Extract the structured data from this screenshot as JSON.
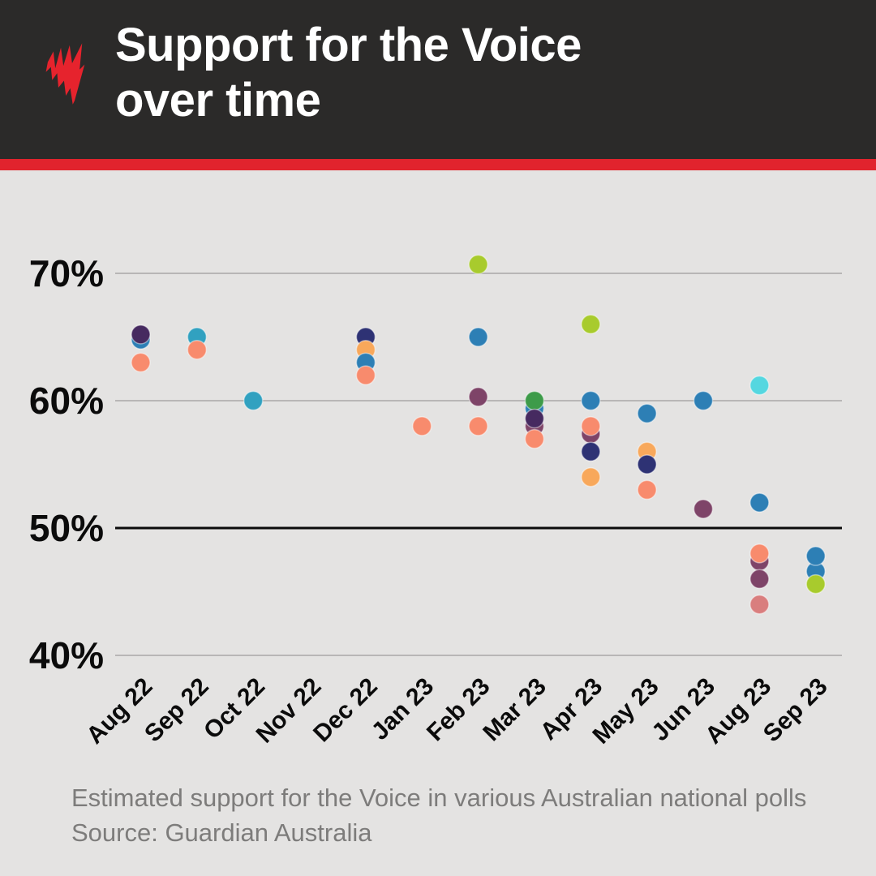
{
  "header": {
    "title_line1": "Support for the Voice",
    "title_line2": "over time"
  },
  "footer": {
    "caption_line1": "Estimated support for the Voice in various Australian national polls",
    "caption_line2": "Source: Guardian Australia"
  },
  "colors": {
    "header_bg": "#2b2a29",
    "accent_red": "#e1232d",
    "page_bg": "#e4e3e2",
    "grid": "#a9a8a7",
    "grid_emphasis": "#0b0b0b",
    "tick_text": "#0b0b0b",
    "caption_text": "#7d7c7b",
    "logo_red": "#e6232d"
  },
  "chart_data": {
    "type": "scatter",
    "title": "Support for the Voice over time",
    "xlabel": "",
    "ylabel": "",
    "grid": "horizontal",
    "legend": "none",
    "ylim": [
      38,
      73
    ],
    "categories": [
      "Aug 22",
      "Sep 22",
      "Oct 22",
      "Nov 22",
      "Dec 22",
      "Jan 23",
      "Feb 23",
      "Mar 23",
      "Apr 23",
      "May 23",
      "Jun 23",
      "Aug 23",
      "Sep 23"
    ],
    "yticks": [
      {
        "label": "70%",
        "value": 70,
        "emphasis": false
      },
      {
        "label": "60%",
        "value": 60,
        "emphasis": false
      },
      {
        "label": "50%",
        "value": 50,
        "emphasis": true
      },
      {
        "label": "40%",
        "value": 40,
        "emphasis": false
      }
    ],
    "palette": {
      "blue": "#2d7fb5",
      "teal": "#31a1c0",
      "cyan": "#55d7e0",
      "navy": "#2e3274",
      "darkpurple": "#462a60",
      "plum": "#7e4468",
      "salmon": "#f88b6d",
      "amber": "#f8a85b",
      "lime": "#a8cb2d",
      "green": "#3d9b49",
      "rose": "#d97e7e"
    },
    "points": [
      {
        "x": "Aug 22",
        "y": 64.8,
        "c": "blue"
      },
      {
        "x": "Aug 22",
        "y": 65.2,
        "c": "darkpurple"
      },
      {
        "x": "Aug 22",
        "y": 63,
        "c": "salmon"
      },
      {
        "x": "Sep 22",
        "y": 65,
        "c": "teal"
      },
      {
        "x": "Sep 22",
        "y": 64,
        "c": "salmon"
      },
      {
        "x": "Oct 22",
        "y": 60,
        "c": "teal"
      },
      {
        "x": "Dec 22",
        "y": 65,
        "c": "navy"
      },
      {
        "x": "Dec 22",
        "y": 64,
        "c": "amber"
      },
      {
        "x": "Dec 22",
        "y": 63,
        "c": "blue"
      },
      {
        "x": "Dec 22",
        "y": 62,
        "c": "salmon"
      },
      {
        "x": "Jan 23",
        "y": 58,
        "c": "salmon"
      },
      {
        "x": "Feb 23",
        "y": 70.7,
        "c": "lime"
      },
      {
        "x": "Feb 23",
        "y": 65,
        "c": "blue"
      },
      {
        "x": "Feb 23",
        "y": 60.3,
        "c": "plum"
      },
      {
        "x": "Feb 23",
        "y": 58,
        "c": "salmon"
      },
      {
        "x": "Mar 23",
        "y": 59.4,
        "c": "blue"
      },
      {
        "x": "Mar 23",
        "y": 60,
        "c": "green"
      },
      {
        "x": "Mar 23",
        "y": 58,
        "c": "plum"
      },
      {
        "x": "Mar 23",
        "y": 58.6,
        "c": "darkpurple"
      },
      {
        "x": "Mar 23",
        "y": 57,
        "c": "salmon"
      },
      {
        "x": "Apr 23",
        "y": 66,
        "c": "lime"
      },
      {
        "x": "Apr 23",
        "y": 60,
        "c": "blue"
      },
      {
        "x": "Apr 23",
        "y": 57.4,
        "c": "plum"
      },
      {
        "x": "Apr 23",
        "y": 58,
        "c": "salmon"
      },
      {
        "x": "Apr 23",
        "y": 56,
        "c": "navy"
      },
      {
        "x": "Apr 23",
        "y": 54,
        "c": "amber"
      },
      {
        "x": "May 23",
        "y": 59,
        "c": "blue"
      },
      {
        "x": "May 23",
        "y": 56,
        "c": "amber"
      },
      {
        "x": "May 23",
        "y": 55,
        "c": "navy"
      },
      {
        "x": "May 23",
        "y": 53,
        "c": "salmon"
      },
      {
        "x": "Jun 23",
        "y": 60,
        "c": "blue"
      },
      {
        "x": "Jun 23",
        "y": 51.5,
        "c": "plum"
      },
      {
        "x": "Aug 23",
        "y": 61.2,
        "c": "cyan"
      },
      {
        "x": "Aug 23",
        "y": 52,
        "c": "blue"
      },
      {
        "x": "Aug 23",
        "y": 47.4,
        "c": "plum"
      },
      {
        "x": "Aug 23",
        "y": 48,
        "c": "salmon"
      },
      {
        "x": "Aug 23",
        "y": 46,
        "c": "plum"
      },
      {
        "x": "Aug 23",
        "y": 44,
        "c": "rose"
      },
      {
        "x": "Sep 23",
        "y": 46.6,
        "c": "blue"
      },
      {
        "x": "Sep 23",
        "y": 47.8,
        "c": "blue"
      },
      {
        "x": "Sep 23",
        "y": 45.6,
        "c": "lime"
      }
    ]
  }
}
